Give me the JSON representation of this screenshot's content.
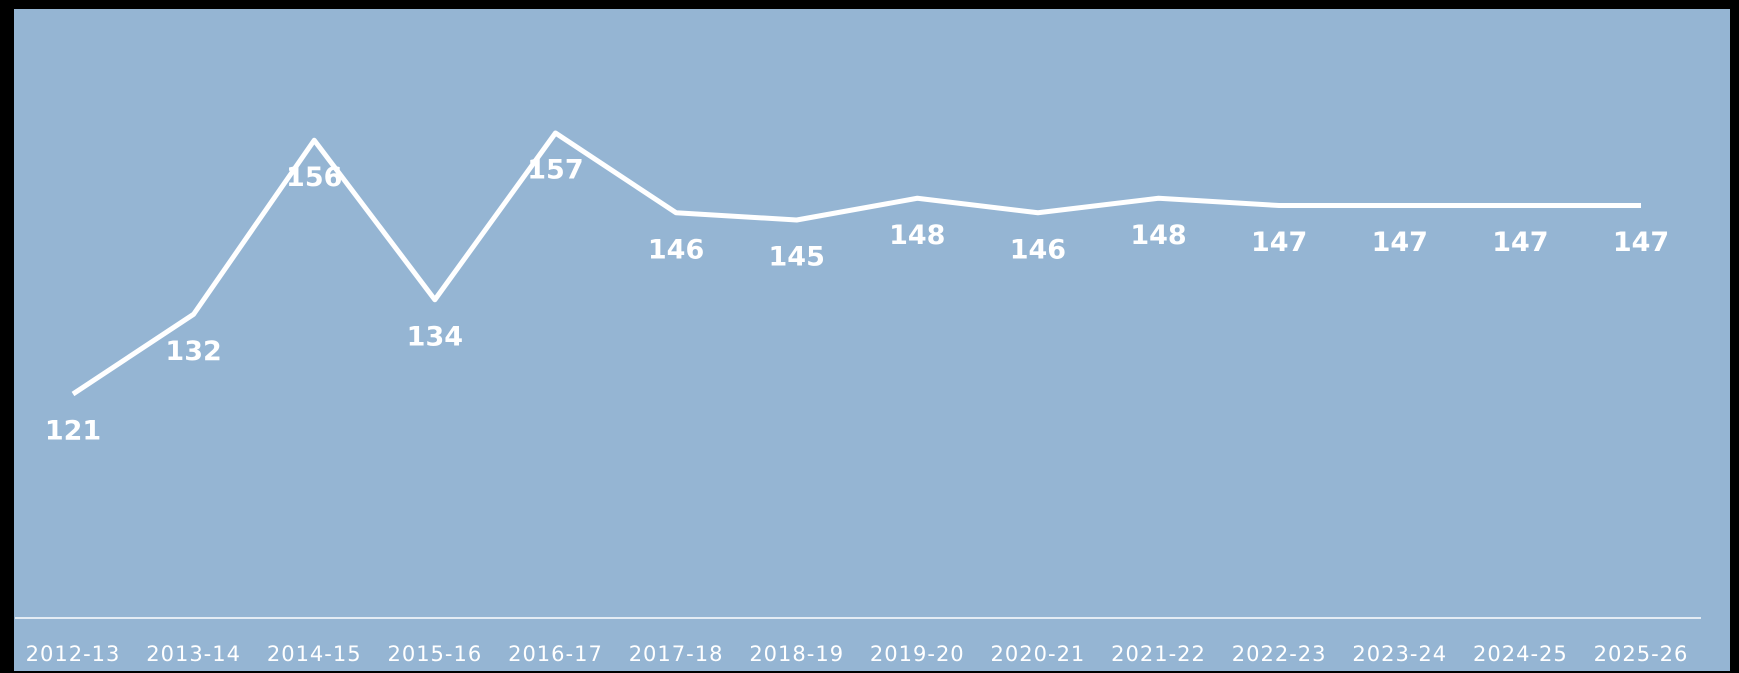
{
  "chart_data": {
    "type": "line",
    "categories": [
      "2012-13",
      "2013-14",
      "2014-15",
      "2015-16",
      "2016-17",
      "2017-18",
      "2018-19",
      "2019-20",
      "2020-21",
      "2021-22",
      "2022-23",
      "2023-24",
      "2024-25",
      "2025-26"
    ],
    "series": [
      {
        "color": "#ffffff",
        "values": [
          121,
          132,
          156,
          134,
          157,
          146,
          145,
          148,
          146,
          148,
          147,
          147,
          147,
          147
        ]
      }
    ]
  }
}
